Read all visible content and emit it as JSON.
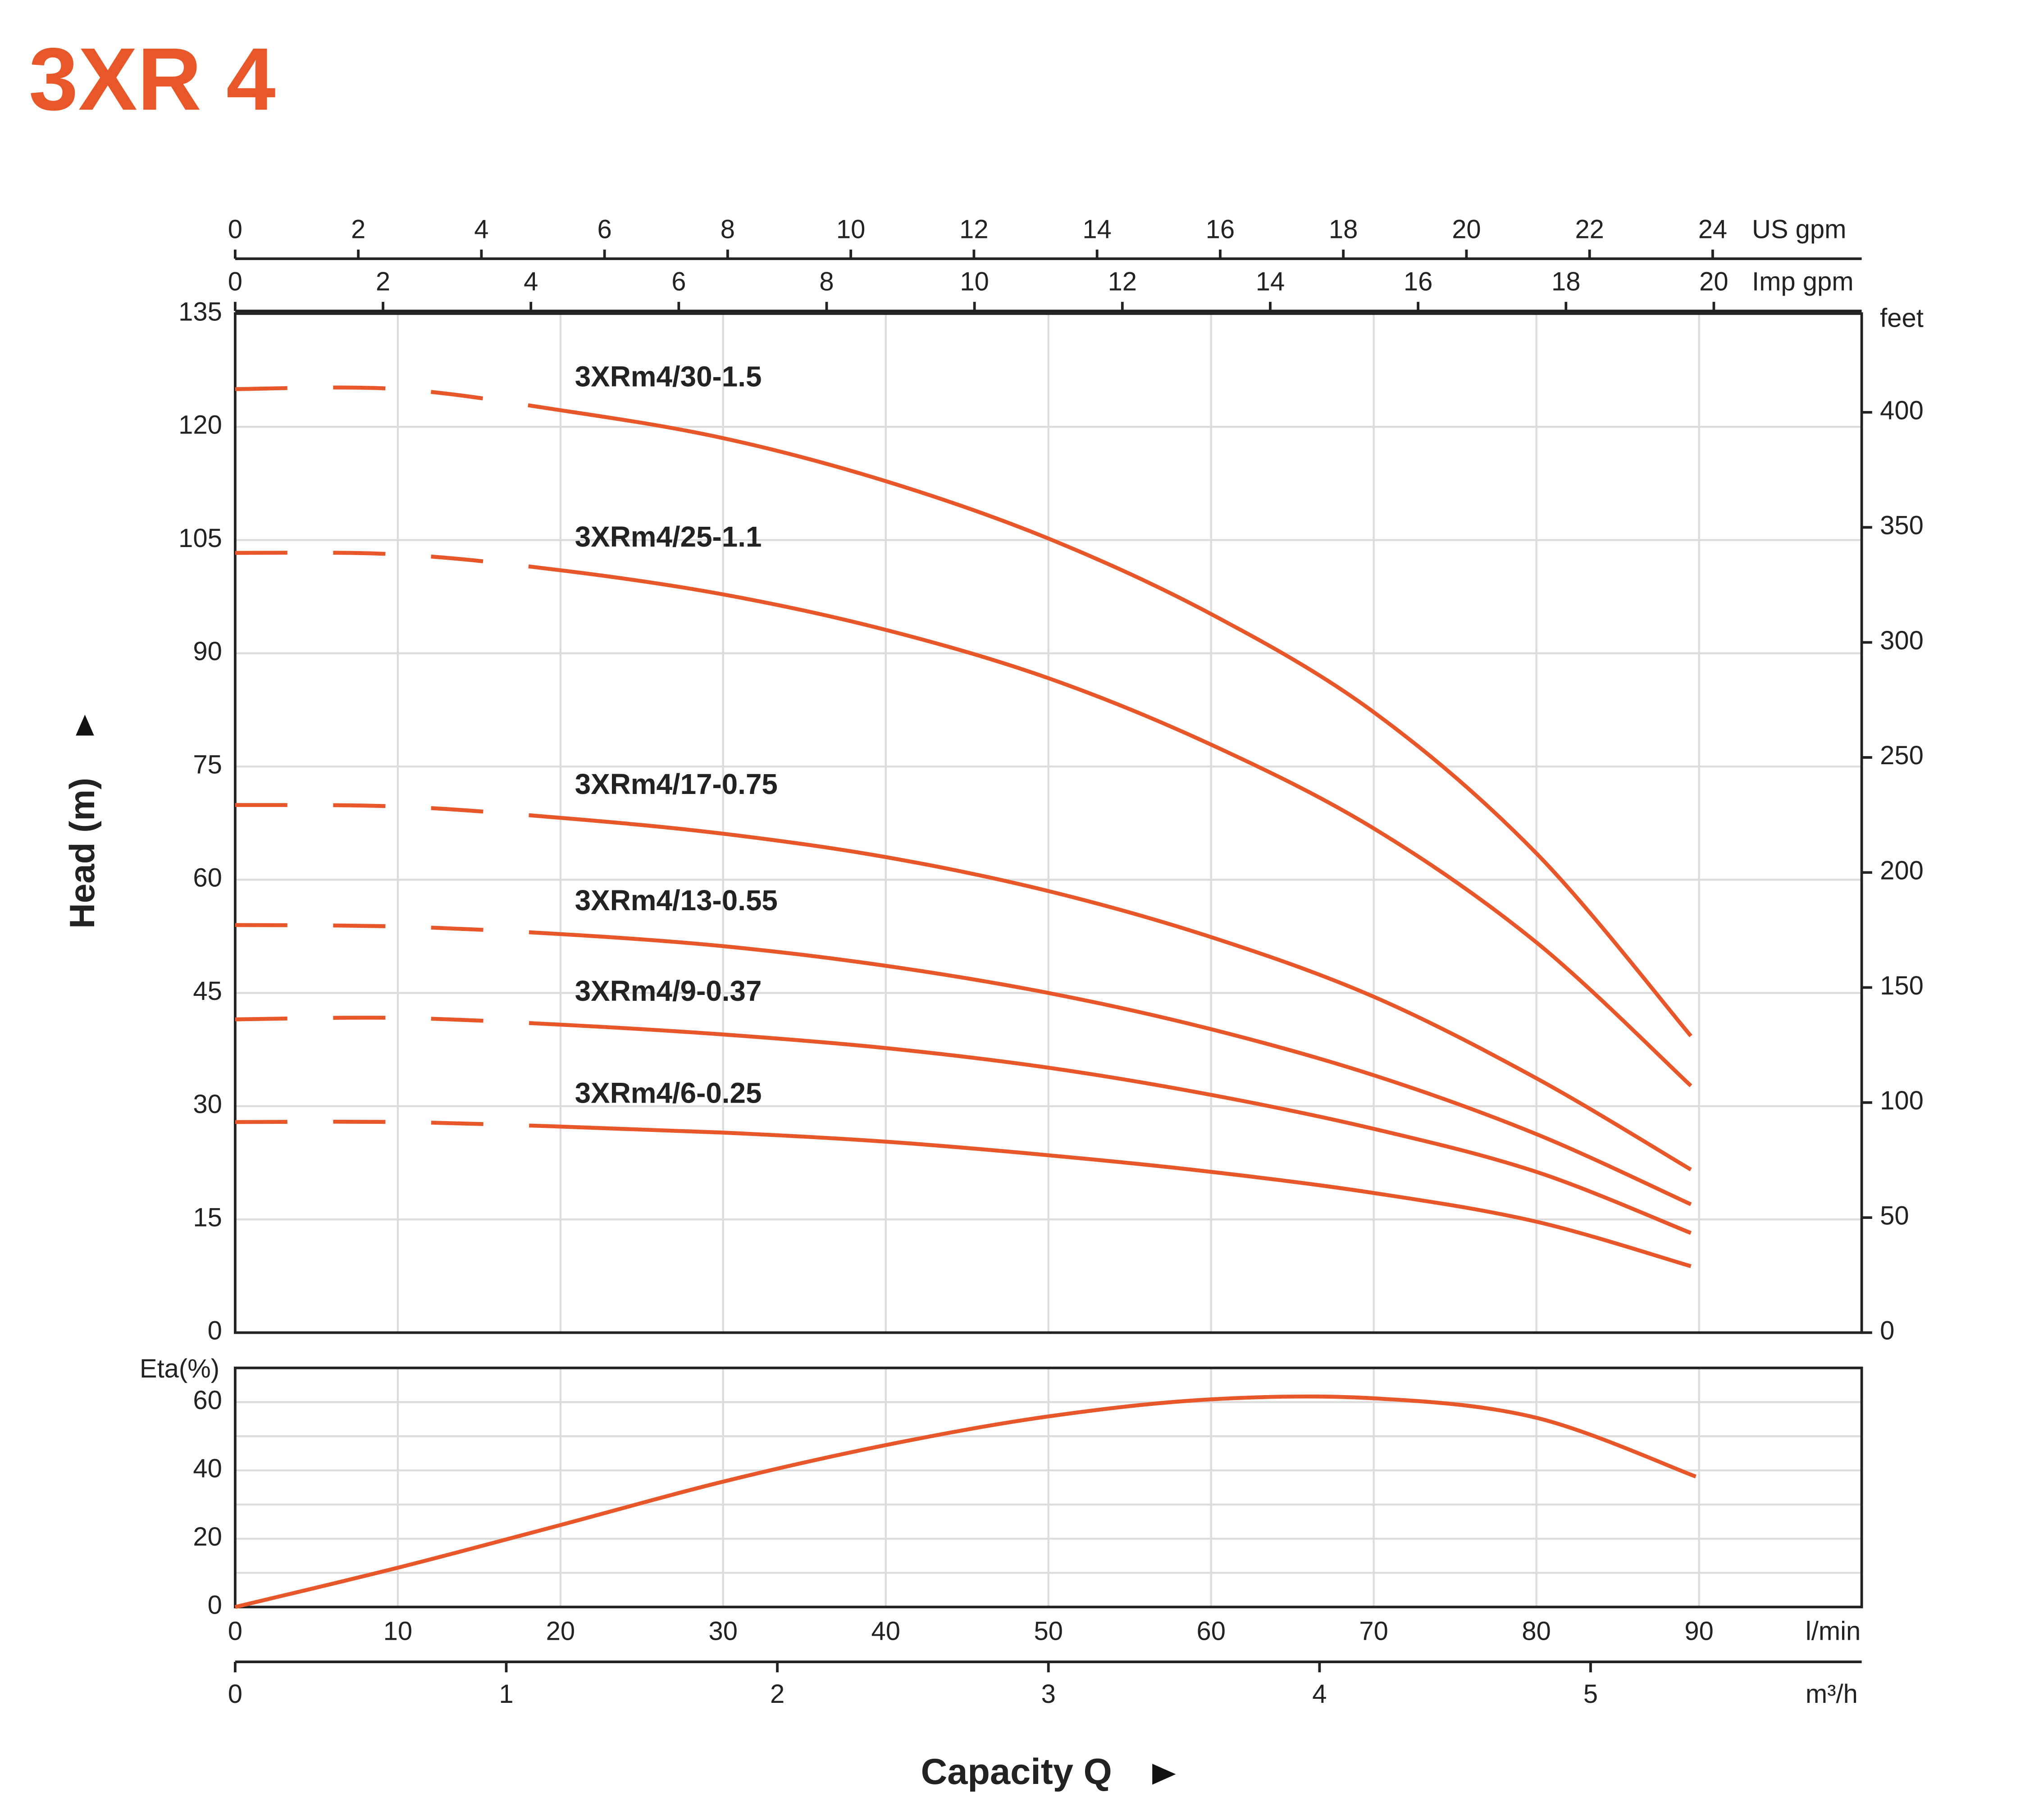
{
  "title": "3XR 4",
  "chart_data": [
    {
      "type": "line",
      "y_label": "Head (m)",
      "x_label": "Capacity Q",
      "xlim": [
        0,
        100
      ],
      "xticks": [
        0,
        10,
        20,
        30,
        40,
        50,
        60,
        70,
        80,
        90
      ],
      "ylim": [
        0,
        135
      ],
      "yticks": [
        0,
        15,
        30,
        45,
        60,
        75,
        90,
        105,
        120,
        135
      ],
      "y2_label": "feet",
      "y2lim": [
        0,
        442.9
      ],
      "y2ticks": [
        0,
        50,
        100,
        150,
        200,
        250,
        300,
        350,
        400
      ],
      "top_axes": [
        {
          "label": "US gpm",
          "lim": [
            0,
            26.42
          ],
          "ticks": [
            0,
            2,
            4,
            6,
            8,
            10,
            12,
            14,
            16,
            18,
            20,
            22,
            24
          ]
        },
        {
          "label": "Imp gpm",
          "lim": [
            0,
            22
          ],
          "ticks": [
            0,
            2,
            4,
            6,
            8,
            10,
            12,
            14,
            16,
            18,
            20
          ]
        }
      ],
      "grid": true,
      "dashed_until": 16,
      "x": [
        0,
        10,
        20,
        30,
        40,
        50,
        60,
        70,
        80,
        89.5
      ],
      "series": [
        {
          "name": "3XRm4/30-1.5",
          "color": "#e8572a",
          "values": [
            125,
            125,
            122.2,
            118.5,
            112.8,
            105.2,
            95.2,
            82.2,
            63.5,
            39.3
          ]
        },
        {
          "name": "3XRm4/25-1.1",
          "color": "#e8572a",
          "values": [
            103.3,
            103.1,
            101,
            97.8,
            93.1,
            86.7,
            77.9,
            66.8,
            51.7,
            32.7
          ]
        },
        {
          "name": "3XRm4/17-0.75",
          "color": "#e8572a",
          "values": [
            69.9,
            69.7,
            68.2,
            66.1,
            63,
            58.5,
            52.4,
            44.5,
            33.7,
            21.6
          ]
        },
        {
          "name": "3XRm4/13-0.55",
          "color": "#e8572a",
          "values": [
            54,
            53.8,
            52.8,
            51.2,
            48.6,
            45,
            40.2,
            34.1,
            26.3,
            17
          ]
        },
        {
          "name": "3XRm4/9-0.37",
          "color": "#e8572a",
          "values": [
            41.5,
            41.7,
            40.8,
            39.5,
            37.7,
            35.1,
            31.5,
            27,
            21.3,
            13.2
          ]
        },
        {
          "name": "3XRm4/6-0.25",
          "color": "#e8572a",
          "values": [
            27.9,
            27.9,
            27.3,
            26.5,
            25.3,
            23.5,
            21.3,
            18.5,
            14.7,
            8.8
          ]
        }
      ]
    },
    {
      "type": "line",
      "y_label": "Eta(%)",
      "xlim": [
        0,
        100
      ],
      "xticks": [
        0,
        10,
        20,
        30,
        40,
        50,
        60,
        70,
        80,
        90
      ],
      "x_unit": "l/min",
      "ylim": [
        0,
        70
      ],
      "yticks": [
        0,
        20,
        40,
        60
      ],
      "ygrid": [
        0,
        10,
        20,
        30,
        40,
        50,
        60,
        70
      ],
      "bottom_axis": {
        "label": "m³/h",
        "lim": [
          0,
          6
        ],
        "ticks": [
          0,
          1,
          2,
          3,
          4,
          5
        ]
      },
      "grid": true,
      "x": [
        0,
        10,
        20,
        30,
        40,
        50,
        60,
        70,
        80,
        89.8
      ],
      "series": [
        {
          "color": "#e8572a",
          "values": [
            0,
            11.5,
            24,
            36.7,
            47.4,
            55.8,
            60.8,
            61.1,
            55.4,
            38.2
          ]
        }
      ]
    }
  ]
}
